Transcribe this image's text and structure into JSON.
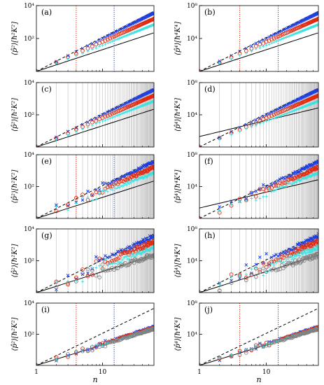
{
  "figure": {
    "x_axis_label": "n",
    "x_tick_labels": [
      "1",
      "10"
    ]
  },
  "chart_data": [
    {
      "id": "a",
      "type": "scatter",
      "panel_label": "(a)",
      "ylabel": "⟨p̂²⟩[ħ²K²]",
      "y_tick_labels": [
        "10²",
        "10⁴"
      ],
      "xscale": "log",
      "yscale": "log",
      "xlim": [
        1,
        60
      ],
      "ylim": [
        1,
        10000
      ],
      "exponent": 2,
      "vlines": [
        4,
        15
      ],
      "has_grid": false,
      "regime": "clean"
    },
    {
      "id": "b",
      "type": "scatter",
      "panel_label": "(b)",
      "ylabel": "⟨p̂⁴⟩[ħ⁴K⁴]",
      "y_tick_labels": [
        "10⁴",
        "10⁸"
      ],
      "xscale": "log",
      "yscale": "log",
      "xlim": [
        1,
        60
      ],
      "ylim": [
        1,
        100000000
      ],
      "exponent": 4,
      "vlines": [
        4,
        15
      ],
      "has_grid": false,
      "regime": "clean"
    },
    {
      "id": "c",
      "type": "scatter",
      "panel_label": "(c)",
      "ylabel": "⟨p̂²⟩[ħ²K²]",
      "y_tick_labels": [
        "10²",
        "10⁴"
      ],
      "xscale": "log",
      "yscale": "log",
      "xlim": [
        1,
        60
      ],
      "ylim": [
        1,
        10000
      ],
      "exponent": 2,
      "vlines": [],
      "has_grid": true,
      "regime": "clean"
    },
    {
      "id": "d",
      "type": "scatter",
      "panel_label": "(d)",
      "ylabel": "⟨p̂⁴⟩[ħ⁴K⁴]",
      "y_tick_labels": [
        "10⁴",
        "10⁸"
      ],
      "xscale": "log",
      "yscale": "log",
      "xlim": [
        1,
        60
      ],
      "ylim": [
        1,
        100000000
      ],
      "exponent": 4,
      "vlines": [],
      "has_grid": true,
      "regime": "clean"
    },
    {
      "id": "e",
      "type": "scatter",
      "panel_label": "(e)",
      "ylabel": "⟨p̂²⟩[ħ²K²]",
      "y_tick_labels": [
        "10²",
        "10⁴"
      ],
      "xscale": "log",
      "yscale": "log",
      "xlim": [
        1,
        60
      ],
      "ylim": [
        1,
        10000
      ],
      "exponent": 2,
      "vlines": [
        4,
        15
      ],
      "has_grid": true,
      "regime": "mild"
    },
    {
      "id": "f",
      "type": "scatter",
      "panel_label": "(f)",
      "ylabel": "⟨p̂⁴⟩[ħ⁴K⁴]",
      "y_tick_labels": [
        "10⁴",
        "10⁸"
      ],
      "xscale": "log",
      "yscale": "log",
      "xlim": [
        1,
        60
      ],
      "ylim": [
        1,
        100000000
      ],
      "exponent": 4,
      "vlines": [],
      "has_grid": true,
      "regime": "mild"
    },
    {
      "id": "g",
      "type": "scatter",
      "panel_label": "(g)",
      "ylabel": "⟨p̂²⟩[ħ²K²]",
      "y_tick_labels": [
        "10²",
        "10⁴"
      ],
      "xscale": "log",
      "yscale": "log",
      "xlim": [
        1,
        60
      ],
      "ylim": [
        1,
        10000
      ],
      "exponent": 2,
      "vlines": [],
      "has_grid": true,
      "regime": "noisy"
    },
    {
      "id": "h",
      "type": "scatter",
      "panel_label": "(h)",
      "ylabel": "⟨p̂⁴⟩[ħ⁴K⁴]",
      "y_tick_labels": [
        "10⁴",
        "10⁸"
      ],
      "xscale": "log",
      "yscale": "log",
      "xlim": [
        1,
        60
      ],
      "ylim": [
        1,
        100000000
      ],
      "exponent": 4,
      "vlines": [],
      "has_grid": true,
      "regime": "noisy"
    },
    {
      "id": "i",
      "type": "scatter",
      "panel_label": "(i)",
      "ylabel": "⟨p̂²⟩[ħ²K²]",
      "y_tick_labels": [
        "10²",
        "10⁴"
      ],
      "xscale": "log",
      "yscale": "log",
      "xlim": [
        1,
        60
      ],
      "ylim": [
        1,
        10000
      ],
      "exponent": 2,
      "vlines": [
        4,
        15
      ],
      "has_grid": false,
      "regime": "converged"
    },
    {
      "id": "j",
      "type": "scatter",
      "panel_label": "(j)",
      "ylabel": "⟨p̂⁴⟩[ħ⁴K⁴]",
      "y_tick_labels": [
        "10⁴",
        "10⁸"
      ],
      "xscale": "log",
      "yscale": "log",
      "xlim": [
        1,
        60
      ],
      "ylim": [
        1,
        100000000
      ],
      "exponent": 4,
      "vlines": [
        4,
        15
      ],
      "has_grid": false,
      "regime": "converged"
    }
  ],
  "colors": {
    "blue_x": "#1f3fe0",
    "red_o": "#e02a10",
    "cyan_plus": "#3fe0e0",
    "gray_o": "#808080",
    "red_vline": "#e02a10",
    "blue_vline": "#1f3fe0",
    "grid": "#b0b0b0",
    "axes": "#000000"
  }
}
